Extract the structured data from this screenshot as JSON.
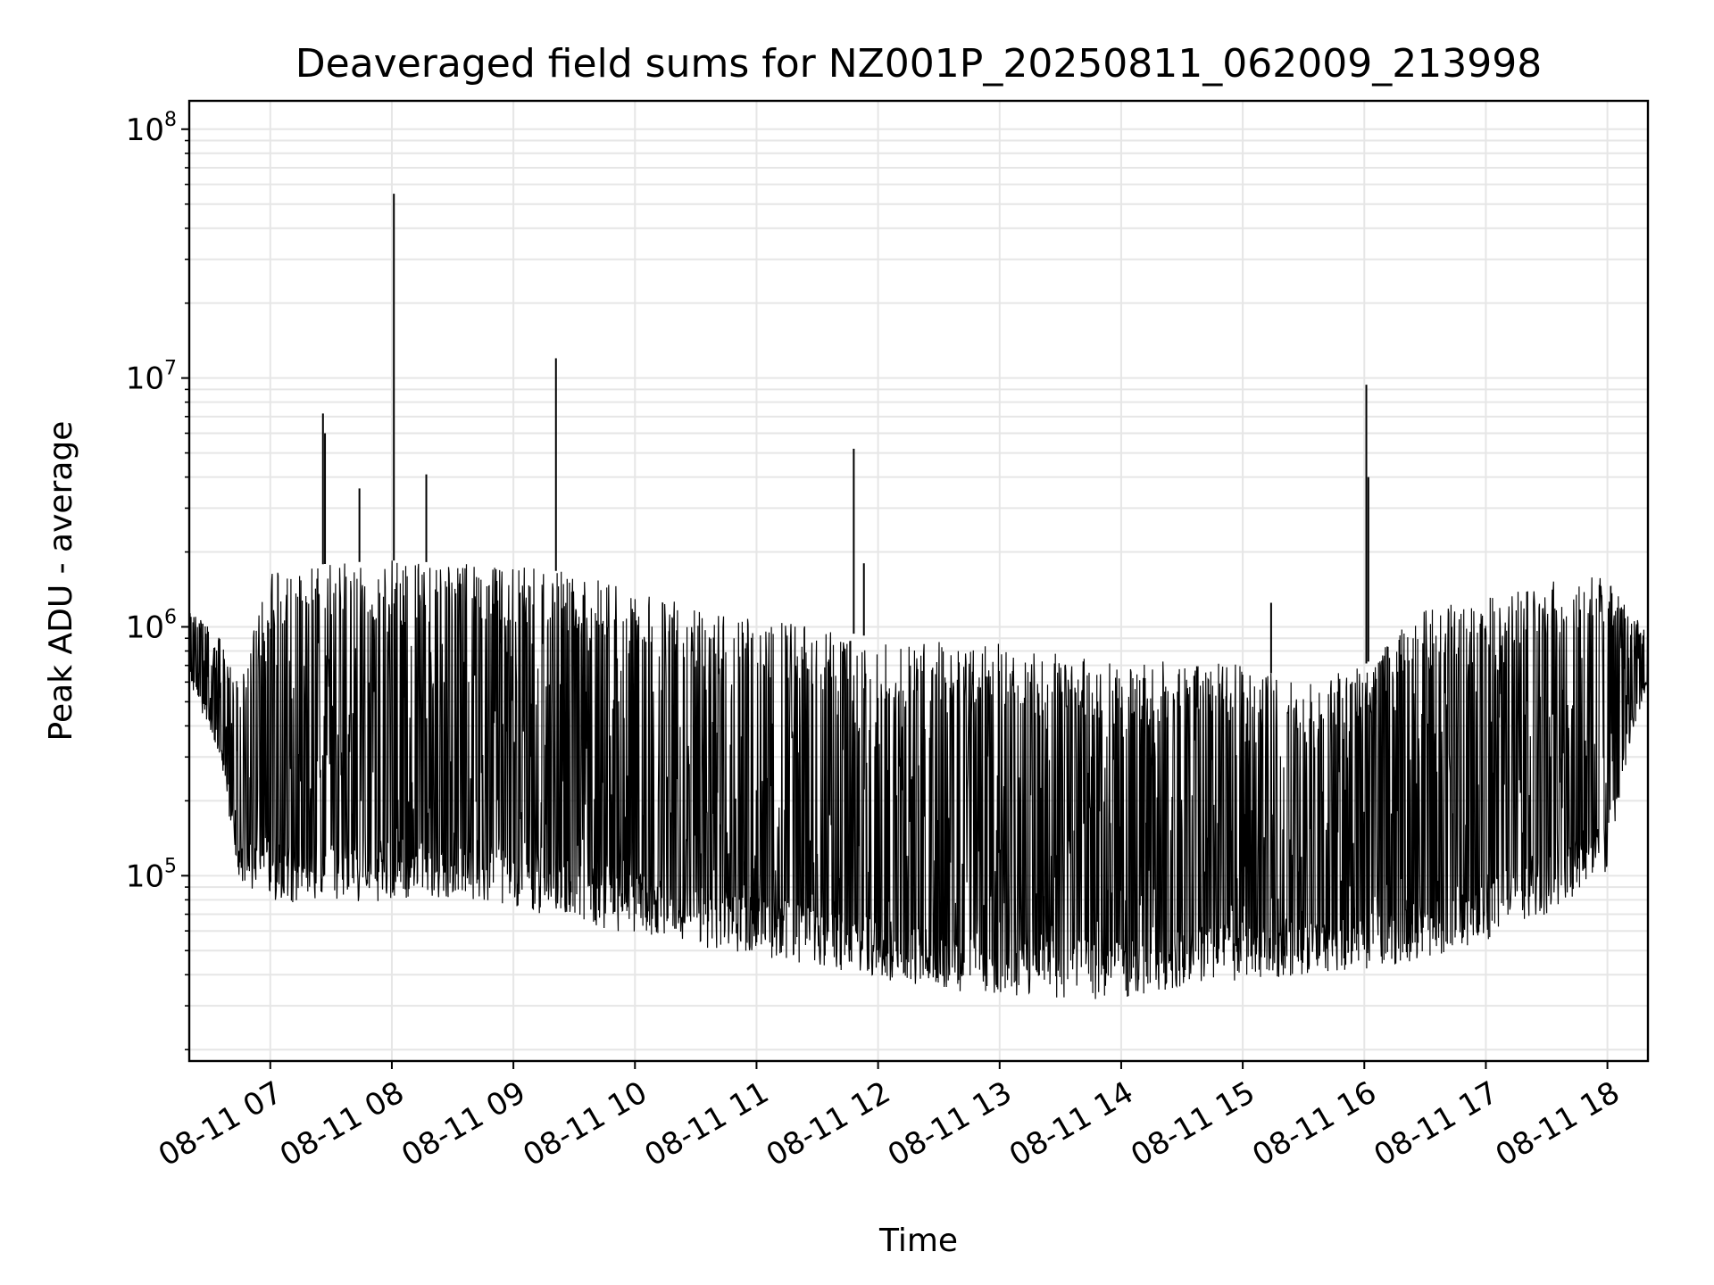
{
  "chart_data": {
    "type": "line",
    "title": "Deaveraged field sums for NZ001P_20250811_062009_213998",
    "xlabel": "Time",
    "ylabel": "Peak ADU - average",
    "x_tick_labels": [
      "08-11 07",
      "08-11 08",
      "08-11 09",
      "08-11 10",
      "08-11 11",
      "08-11 12",
      "08-11 13",
      "08-11 14",
      "08-11 15",
      "08-11 16",
      "08-11 17",
      "08-11 18"
    ],
    "x_range": [
      "2025-08-11 06:20",
      "2025-08-11 18:20"
    ],
    "yscale": "log",
    "ylim": [
      18000,
      130000000
    ],
    "y_ticks": [
      {
        "value": 100000,
        "base": "10",
        "exp": "5"
      },
      {
        "value": 1000000,
        "base": "10",
        "exp": "6"
      },
      {
        "value": 10000000,
        "base": "10",
        "exp": "7"
      },
      {
        "value": 100000000,
        "base": "10",
        "exp": "8"
      }
    ],
    "grid": true,
    "line_color": "#000000",
    "envelope": [
      {
        "t": "2025-08-11 06:20",
        "low": 600000,
        "high": 1200000
      },
      {
        "t": "2025-08-11 06:35",
        "low": 300000,
        "high": 900000
      },
      {
        "t": "2025-08-11 06:45",
        "low": 95000,
        "high": 600000
      },
      {
        "t": "2025-08-11 07:00",
        "low": 80000,
        "high": 1700000
      },
      {
        "t": "2025-08-11 07:30",
        "low": 75000,
        "high": 1800000
      },
      {
        "t": "2025-08-11 08:00",
        "low": 80000,
        "high": 1850000
      },
      {
        "t": "2025-08-11 08:30",
        "low": 82000,
        "high": 1800000
      },
      {
        "t": "2025-08-11 09:00",
        "low": 75000,
        "high": 1750000
      },
      {
        "t": "2025-08-11 09:30",
        "low": 65000,
        "high": 1650000
      },
      {
        "t": "2025-08-11 10:00",
        "low": 58000,
        "high": 1400000
      },
      {
        "t": "2025-08-11 10:30",
        "low": 52000,
        "high": 1200000
      },
      {
        "t": "2025-08-11 11:00",
        "low": 48000,
        "high": 1100000
      },
      {
        "t": "2025-08-11 11:30",
        "low": 42000,
        "high": 1000000
      },
      {
        "t": "2025-08-11 12:00",
        "low": 38000,
        "high": 900000
      },
      {
        "t": "2025-08-11 12:30",
        "low": 34000,
        "high": 880000
      },
      {
        "t": "2025-08-11 13:00",
        "low": 33000,
        "high": 880000
      },
      {
        "t": "2025-08-11 13:30",
        "low": 32000,
        "high": 800000
      },
      {
        "t": "2025-08-11 14:00",
        "low": 31000,
        "high": 700000
      },
      {
        "t": "2025-08-11 14:30",
        "low": 36000,
        "high": 750000
      },
      {
        "t": "2025-08-11 15:00",
        "low": 38000,
        "high": 700000
      },
      {
        "t": "2025-08-11 15:30",
        "low": 40000,
        "high": 600000
      },
      {
        "t": "2025-08-11 16:00",
        "low": 42000,
        "high": 700000
      },
      {
        "t": "2025-08-11 16:30",
        "low": 45000,
        "high": 1200000
      },
      {
        "t": "2025-08-11 17:00",
        "low": 55000,
        "high": 1300000
      },
      {
        "t": "2025-08-11 17:30",
        "low": 70000,
        "high": 1600000
      },
      {
        "t": "2025-08-11 18:00",
        "low": 100000,
        "high": 1650000
      },
      {
        "t": "2025-08-11 18:10",
        "low": 300000,
        "high": 1300000
      },
      {
        "t": "2025-08-11 18:20",
        "low": 600000,
        "high": 950000
      }
    ],
    "spikes": [
      {
        "t": "2025-08-11 07:26",
        "y": 7200000
      },
      {
        "t": "2025-08-11 07:27",
        "y": 6000000
      },
      {
        "t": "2025-08-11 07:44",
        "y": 3600000
      },
      {
        "t": "2025-08-11 08:01",
        "y": 55000000
      },
      {
        "t": "2025-08-11 08:17",
        "y": 4100000
      },
      {
        "t": "2025-08-11 09:21",
        "y": 12000000
      },
      {
        "t": "2025-08-11 11:48",
        "y": 5200000
      },
      {
        "t": "2025-08-11 11:53",
        "y": 1800000
      },
      {
        "t": "2025-08-11 15:14",
        "y": 1250000
      },
      {
        "t": "2025-08-11 16:01",
        "y": 9400000
      },
      {
        "t": "2025-08-11 16:02",
        "y": 4000000
      }
    ]
  }
}
